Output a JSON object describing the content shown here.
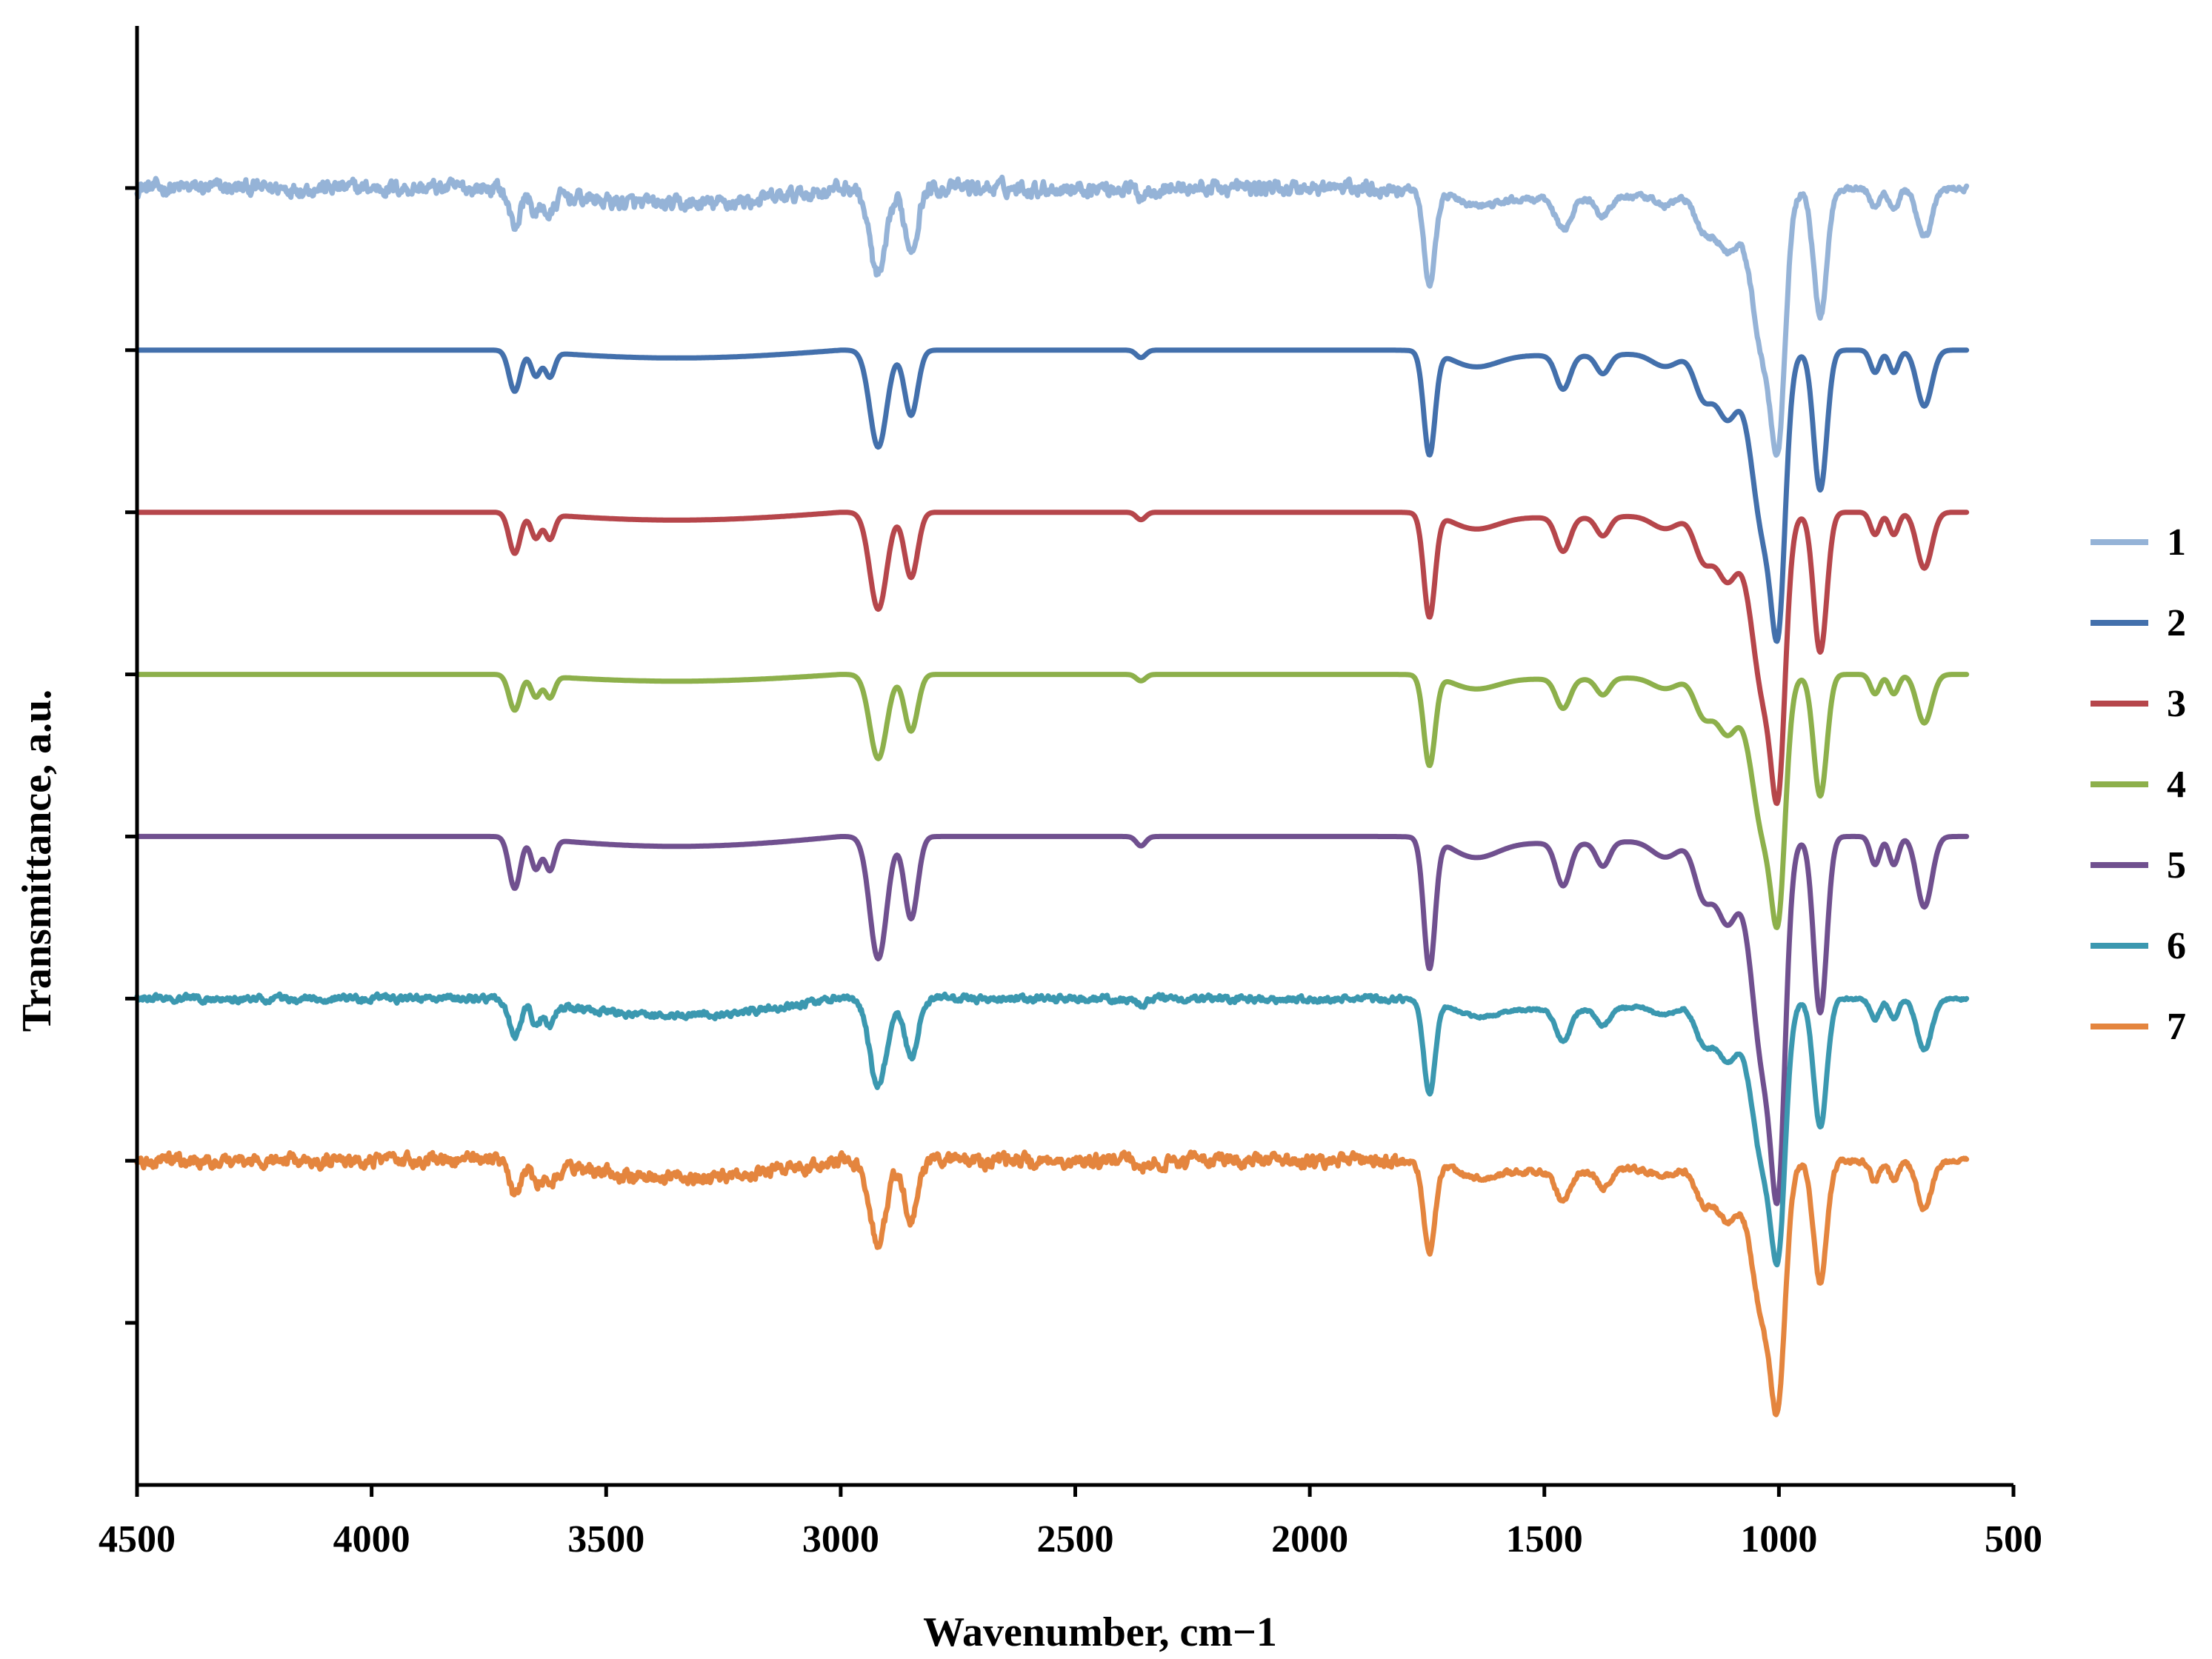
{
  "chart_data": {
    "type": "line",
    "title": "",
    "xlabel": "Wavenumber, cm−1",
    "ylabel": "Transmittance, a.u.",
    "xlim": [
      4500,
      500
    ],
    "x_ticks": [
      4500,
      4000,
      3500,
      3000,
      2500,
      2000,
      1500,
      1000,
      500
    ],
    "x_tick_labels": [
      "4500",
      "4000",
      "3500",
      "3000",
      "2500",
      "2000",
      "1500",
      "1000",
      "500"
    ],
    "ylim": [
      -1,
      8
    ],
    "y_ticks": [
      0,
      1,
      2,
      3,
      4,
      5,
      6,
      7
    ],
    "y_tick_labels_shown": false,
    "grid": false,
    "legend_position": "right",
    "x_range": [
      4500,
      600
    ],
    "series": [
      {
        "name": "1",
        "color": "#95B3D7",
        "baseline": 7,
        "depth": 1.05,
        "noise": 0.045
      },
      {
        "name": "2",
        "color": "#4370AC",
        "baseline": 6,
        "depth": 1.15,
        "noise": 0.0
      },
      {
        "name": "3",
        "color": "#B6464B",
        "baseline": 5,
        "depth": 1.15,
        "noise": 0.0
      },
      {
        "name": "4",
        "color": "#8DB04B",
        "baseline": 4,
        "depth": 1.0,
        "noise": 0.0
      },
      {
        "name": "5",
        "color": "#70508F",
        "baseline": 3,
        "depth": 1.45,
        "noise": 0.0
      },
      {
        "name": "6",
        "color": "#3B98B0",
        "baseline": 2,
        "depth": 1.05,
        "noise": 0.02
      },
      {
        "name": "7",
        "color": "#E4853E",
        "baseline": 1,
        "depth": 1.0,
        "noise": 0.04
      }
    ],
    "bands": [
      {
        "center": 3695,
        "width": 12,
        "rel_depth": 0.22
      },
      {
        "center": 3650,
        "width": 10,
        "rel_depth": 0.13
      },
      {
        "center": 3620,
        "width": 10,
        "rel_depth": 0.13
      },
      {
        "center": 2920,
        "width": 18,
        "rel_depth": 0.52
      },
      {
        "center": 2850,
        "width": 14,
        "rel_depth": 0.35
      },
      {
        "center": 2360,
        "width": 10,
        "rel_depth": 0.04
      },
      {
        "center": 1745,
        "width": 12,
        "rel_depth": 0.55
      },
      {
        "center": 1650,
        "width": 50,
        "rel_depth": 0.08
      },
      {
        "center": 1460,
        "width": 15,
        "rel_depth": 0.18
      },
      {
        "center": 1375,
        "width": 14,
        "rel_depth": 0.1
      },
      {
        "center": 1240,
        "width": 30,
        "rel_depth": 0.08
      },
      {
        "center": 1160,
        "width": 20,
        "rel_depth": 0.25
      },
      {
        "center": 1110,
        "width": 22,
        "rel_depth": 0.35
      },
      {
        "center": 1030,
        "width": 28,
        "rel_depth": 1.0
      },
      {
        "center": 1000,
        "width": 14,
        "rel_depth": 0.95
      },
      {
        "center": 912,
        "width": 14,
        "rel_depth": 0.75
      },
      {
        "center": 795,
        "width": 10,
        "rel_depth": 0.12
      },
      {
        "center": 755,
        "width": 10,
        "rel_depth": 0.12
      },
      {
        "center": 690,
        "width": 16,
        "rel_depth": 0.3
      }
    ]
  },
  "legend": {
    "items": [
      "1",
      "2",
      "3",
      "4",
      "5",
      "6",
      "7"
    ],
    "colors": [
      "#95B3D7",
      "#4370AC",
      "#B6464B",
      "#8DB04B",
      "#70508F",
      "#3B98B0",
      "#E4853E"
    ]
  }
}
